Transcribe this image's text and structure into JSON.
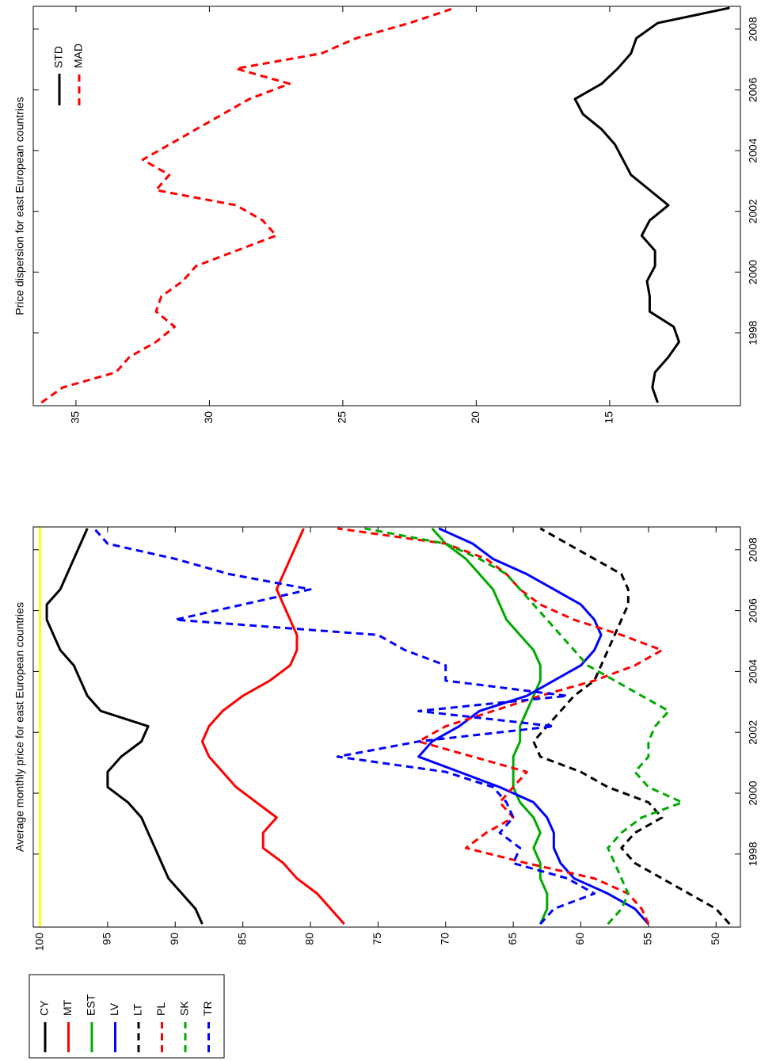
{
  "chart_data": [
    {
      "type": "line",
      "title": "Average monthly price for east European countries",
      "x": [
        1995.7,
        1996.2,
        1996.7,
        1997.2,
        1997.7,
        1998.2,
        1998.7,
        1999.2,
        1999.7,
        2000.2,
        2000.7,
        2001.2,
        2001.7,
        2002.2,
        2002.7,
        2003.2,
        2003.7,
        2004.2,
        2004.7,
        2005.2,
        2005.7,
        2006.2,
        2006.7,
        2007.2,
        2007.7,
        2008.2,
        2008.7
      ],
      "xlim": [
        1995.6,
        2008.75
      ],
      "xticks": [
        1998,
        2000,
        2002,
        2004,
        2006,
        2008
      ],
      "ylim": [
        48.2,
        100.5
      ],
      "yticks": [
        50,
        55,
        60,
        65,
        70,
        75,
        80,
        85,
        90,
        95,
        100
      ],
      "reference_line": {
        "value": 100,
        "color": "#ffff00"
      },
      "legend": "outside",
      "series": [
        {
          "name": "CY",
          "color": "#000000",
          "line_style": "solid",
          "values": [
            88,
            88.5,
            89.5,
            90.5,
            91,
            91.5,
            92,
            92.5,
            93.5,
            95,
            95,
            94,
            92.5,
            92,
            95.5,
            96.5,
            97,
            97.5,
            98.5,
            99,
            99.5,
            99.5,
            98.5,
            98,
            97.5,
            97,
            96.5
          ]
        },
        {
          "name": "MT",
          "color": "#ff0000",
          "line_style": "solid",
          "values": [
            77.5,
            78.5,
            79.5,
            81,
            82,
            83.5,
            83.5,
            82.5,
            84,
            85.5,
            86.5,
            87.5,
            88,
            87.5,
            86.5,
            85,
            83,
            81.5,
            81,
            81,
            81.5,
            82,
            82.5,
            82,
            81.5,
            81,
            80.5
          ]
        },
        {
          "name": "EST",
          "color": "#00aa00",
          "line_style": "solid",
          "values": [
            63,
            62.5,
            62.5,
            63,
            63,
            63.5,
            63,
            63.5,
            64.5,
            65,
            65,
            65,
            64.5,
            64.5,
            64,
            63.5,
            63,
            63,
            63.5,
            64.5,
            65.5,
            66,
            66.5,
            67.5,
            68.5,
            70,
            71
          ]
        },
        {
          "name": "LV",
          "color": "#0000ff",
          "line_style": "solid",
          "values": [
            55,
            56,
            58,
            60.5,
            61.5,
            62,
            62,
            62.5,
            63.5,
            66,
            69,
            72,
            71,
            69,
            67.5,
            64,
            62,
            60,
            59,
            58.5,
            59,
            60,
            62,
            64,
            66.5,
            68,
            70.5
          ]
        },
        {
          "name": "LT",
          "color": "#000000",
          "line_style": "dashed",
          "values": [
            49,
            50,
            52,
            54,
            56,
            57,
            56,
            54,
            55,
            58,
            60,
            63,
            63.5,
            62.5,
            61.5,
            60.5,
            59,
            58.5,
            58,
            57.5,
            57,
            56.5,
            56.5,
            57,
            59,
            61,
            63
          ]
        },
        {
          "name": "PL",
          "color": "#ff0000",
          "line_style": "dashed",
          "values": [
            55,
            55.5,
            56.5,
            59,
            64,
            68.5,
            67,
            65,
            66,
            65,
            64,
            68,
            72,
            70,
            66.5,
            63,
            59,
            56,
            54,
            57,
            60.5,
            63,
            64.5,
            65.5,
            67,
            70,
            78
          ]
        },
        {
          "name": "SK",
          "color": "#00aa00",
          "line_style": "dashed",
          "values": [
            58,
            57,
            56.5,
            57,
            57.5,
            58,
            57,
            55.5,
            52.5,
            55,
            56,
            55,
            55,
            54.5,
            53.5,
            55.5,
            57.5,
            59.5,
            60.5,
            61.5,
            62.5,
            63.5,
            64.5,
            65.5,
            67.5,
            70,
            76
          ]
        },
        {
          "name": "TR",
          "color": "#0000ff",
          "line_style": "dashed",
          "values": [
            63,
            62,
            59,
            61,
            65,
            64.5,
            66,
            65,
            65.5,
            66.5,
            70,
            78,
            72,
            62,
            72,
            61,
            70,
            70,
            73,
            75,
            90,
            85,
            80,
            86,
            90,
            95,
            96
          ]
        }
      ]
    },
    {
      "type": "line",
      "title": "Price dispersion for east European countries",
      "x": [
        1995.7,
        1996.2,
        1996.7,
        1997.2,
        1997.7,
        1998.2,
        1998.7,
        1999.2,
        1999.7,
        2000.2,
        2000.7,
        2001.2,
        2001.7,
        2002.2,
        2002.7,
        2003.2,
        2003.7,
        2004.2,
        2004.7,
        2005.2,
        2005.7,
        2006.2,
        2006.7,
        2007.2,
        2007.7,
        2008.2,
        2008.7
      ],
      "xlim": [
        1995.6,
        2008.75
      ],
      "xticks": [
        1998,
        2000,
        2002,
        2004,
        2006,
        2008
      ],
      "ylim": [
        10.1,
        36.6
      ],
      "yticks": [
        15,
        20,
        25,
        30,
        35
      ],
      "legend": "northeast",
      "series": [
        {
          "name": "STD",
          "color": "#000000",
          "line_style": "solid",
          "values": [
            13.2,
            13.4,
            13.3,
            12.8,
            12.4,
            12.6,
            13.5,
            13.5,
            13.6,
            13.3,
            13.3,
            13.8,
            13.5,
            12.8,
            13.5,
            14.2,
            14.5,
            14.8,
            15.3,
            16,
            16.3,
            15.3,
            14.7,
            14.2,
            14,
            13.2,
            10.5
          ]
        },
        {
          "name": "MAD",
          "color": "#ff0000",
          "line_style": "dashed",
          "values": [
            36.3,
            35.5,
            33.5,
            33,
            32,
            31.3,
            32,
            31.8,
            31,
            30.5,
            29,
            27.5,
            28,
            29,
            32,
            31.5,
            32.5,
            31.5,
            30.5,
            29.5,
            28.5,
            27,
            29,
            25.8,
            24.5,
            22.5,
            20.8
          ]
        }
      ]
    }
  ]
}
